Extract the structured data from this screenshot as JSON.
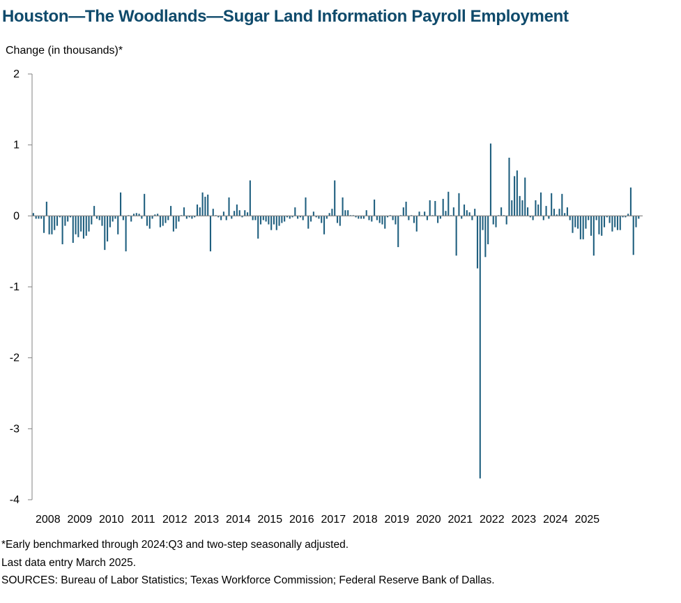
{
  "chart_data": {
    "type": "bar",
    "title": "Houston—The Woodlands—Sugar Land Information Payroll Employment",
    "ylabel": "Change (in thousands)*",
    "xlabel": "",
    "ylim": [
      -4,
      2
    ],
    "yticks": [
      "2",
      "1",
      "0",
      "-1",
      "-2",
      "-3",
      "-4"
    ],
    "xtick_labels": [
      "2008",
      "2009",
      "2010",
      "2011",
      "2012",
      "2013",
      "2014",
      "2015",
      "2016",
      "2017",
      "2018",
      "2019",
      "2020",
      "2021",
      "2022",
      "2023",
      "2024",
      "2025"
    ],
    "start": "2008-01",
    "end": "2025-03",
    "colors": {
      "bar": "#1f5f7f",
      "axis": "#808080"
    },
    "series": [
      {
        "values": [
          0.04,
          -0.04,
          -0.04,
          -0.04,
          -0.24,
          0.2,
          -0.26,
          -0.26,
          -0.2,
          -0.14,
          -0.02,
          -0.4,
          -0.14,
          -0.08,
          -0.02,
          -0.38,
          -0.26,
          -0.3,
          -0.22,
          -0.32,
          -0.28,
          -0.22,
          -0.12,
          0.14,
          -0.04,
          -0.06,
          -0.14,
          -0.48,
          -0.36,
          -0.16,
          -0.08,
          -0.04,
          -0.26,
          0.33,
          -0.06,
          -0.5,
          0.01,
          -0.08,
          0.03,
          0.04,
          0.03,
          -0.04,
          0.31,
          -0.14,
          -0.18,
          -0.04,
          0.02,
          0.03,
          -0.16,
          -0.14,
          -0.1,
          -0.06,
          0.14,
          -0.22,
          -0.18,
          -0.08,
          0.01,
          0.12,
          -0.04,
          -0.02,
          -0.04,
          -0.02,
          0.16,
          0.12,
          0.33,
          0.27,
          0.3,
          -0.5,
          0.1,
          0.01,
          -0.02,
          -0.06,
          0.06,
          -0.06,
          0.26,
          -0.04,
          0.07,
          0.16,
          0.08,
          -0.02,
          0.08,
          0.05,
          0.5,
          -0.06,
          -0.06,
          -0.32,
          -0.12,
          -0.06,
          -0.08,
          -0.12,
          -0.2,
          -0.12,
          -0.2,
          -0.14,
          -0.1,
          -0.08,
          -0.02,
          -0.04,
          -0.02,
          0.12,
          -0.04,
          -0.02,
          -0.06,
          0.26,
          -0.18,
          -0.08,
          0.06,
          -0.02,
          -0.04,
          -0.1,
          -0.26,
          -0.04,
          0.04,
          0.1,
          0.5,
          -0.1,
          -0.14,
          0.26,
          0.08,
          0.08,
          0.01,
          0.01,
          -0.02,
          -0.04,
          -0.04,
          -0.04,
          0.08,
          -0.06,
          -0.08,
          0.23,
          -0.06,
          -0.1,
          -0.12,
          -0.18,
          -0.02,
          0.01,
          -0.06,
          -0.12,
          -0.44,
          0.01,
          0.12,
          0.2,
          -0.06,
          0.01,
          -0.1,
          -0.22,
          0.06,
          0.01,
          0.06,
          -0.06,
          0.22,
          0.01,
          0.21,
          -0.1,
          -0.04,
          0.24,
          0.07,
          0.34,
          0.01,
          0.12,
          -0.56,
          0.32,
          -0.04,
          0.16,
          0.08,
          0.05,
          -0.06,
          0.1,
          -0.74,
          -3.7,
          -0.2,
          -0.58,
          -0.4,
          1.02,
          -0.12,
          -0.16,
          0.01,
          0.12,
          0.01,
          -0.12,
          0.82,
          0.22,
          0.56,
          0.64,
          0.28,
          0.22,
          0.54,
          0.12,
          -0.02,
          -0.06,
          0.22,
          0.16,
          0.33,
          -0.06,
          0.14,
          -0.04,
          0.32,
          0.1,
          0.02,
          0.1,
          0.31,
          0.04,
          0.12,
          -0.06,
          -0.24,
          -0.16,
          -0.18,
          -0.33,
          -0.33,
          -0.18,
          -0.06,
          -0.28,
          -0.56,
          -0.06,
          -0.26,
          -0.28,
          -0.16,
          -0.02,
          -0.1,
          -0.22,
          -0.16,
          -0.2,
          -0.2,
          -0.02,
          -0.02,
          0.03,
          0.4,
          -0.55,
          -0.16,
          -0.04
        ]
      }
    ]
  },
  "notes": [
    "*Early benchmarked through 2024:Q3 and two-step seasonally adjusted.",
    "Last data entry March 2025.",
    "SOURCES: Bureau of Labor Statistics; Texas Workforce Commission; Federal Reserve Bank of Dallas."
  ]
}
